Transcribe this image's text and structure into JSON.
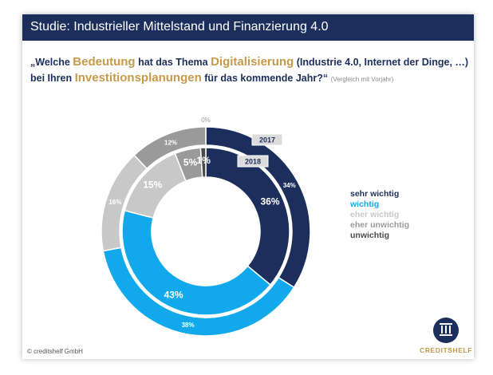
{
  "header": {
    "title": "Studie: Industrieller Mittelstand und Finanzierung 4.0"
  },
  "question": {
    "line1_part1": "„Welche ",
    "highlight1": "Bedeutung",
    "line1_part2": " hat das Thema ",
    "highlight2": "Digitalisierung",
    "line1_part3": " (Industrie 4.0, Internet der Dinge, …)",
    "line2_part1": "bei Ihren ",
    "highlight3": "Investitionsplanungen",
    "line2_part2": " für das kommende Jahr?“ ",
    "note": "(Vergleich mit Vorjahr)"
  },
  "chart_data": {
    "type": "donut",
    "categories": [
      "sehr wichtig",
      "wichtig",
      "eher wichtig",
      "eher unwichtig",
      "unwichtig"
    ],
    "colors": [
      "#1c2f5c",
      "#12a9ec",
      "#c8c8c8",
      "#9a9a9a",
      "#4a4a4a"
    ],
    "series": [
      {
        "name": "2017",
        "values": [
          34,
          38,
          16,
          12,
          0
        ],
        "labels": [
          "34%",
          "38%",
          "16%",
          "12%",
          "0%"
        ]
      },
      {
        "name": "2018",
        "values": [
          36,
          43,
          15,
          5,
          1
        ],
        "labels": [
          "36%",
          "43%",
          "15%",
          "5%",
          "1%"
        ]
      }
    ]
  },
  "legend": {
    "items": [
      {
        "label": "sehr wichtig",
        "color": "#1c2f5c"
      },
      {
        "label": "wichtig",
        "color": "#12a9ec"
      },
      {
        "label": "eher wichtig",
        "color": "#c8c8c8"
      },
      {
        "label": "eher unwichtig",
        "color": "#9a9a9a"
      },
      {
        "label": "unwichtig",
        "color": "#4a4a4a"
      }
    ]
  },
  "footer": {
    "copyright": "© creditshelf GmbH",
    "logo_text": "CREDITSHELF",
    "logo_icon": "bank-columns-icon"
  }
}
